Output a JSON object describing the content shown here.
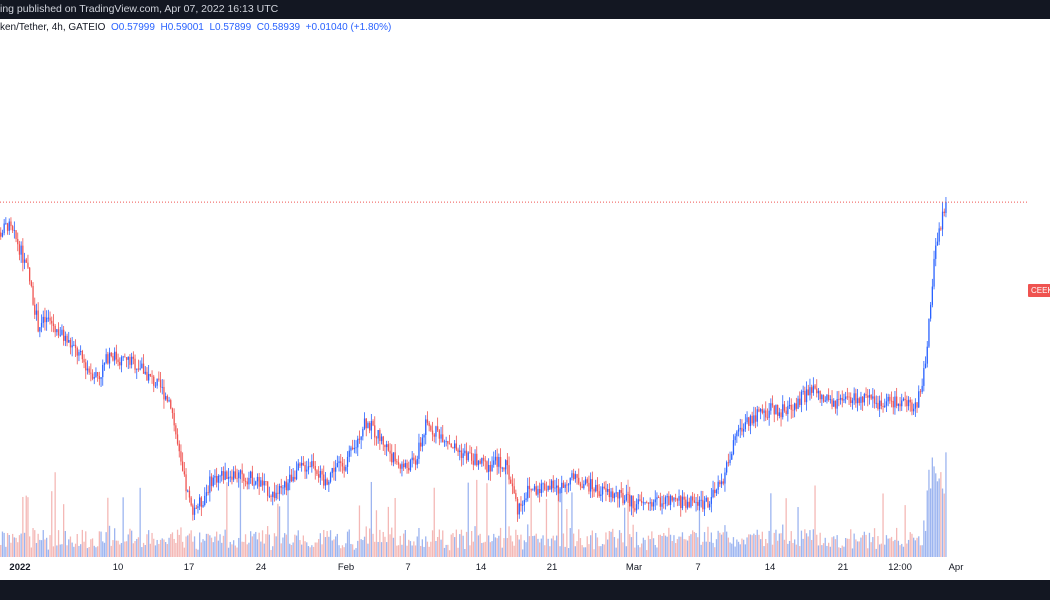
{
  "header": {
    "publish_text": "ing published on TradingView.com, Apr 07, 2022 16:13 UTC"
  },
  "legend": {
    "symbol": "ken/Tether, 4h, GATEIO",
    "open_label": "O",
    "open": "0.57999",
    "high_label": "H",
    "high": "0.59001",
    "low_label": "L",
    "low": "0.57899",
    "close_label": "C",
    "close": "0.58939",
    "change": "+0.01040 (+1.80%)"
  },
  "price_label": "CEEK",
  "colors": {
    "up": "#2962ff",
    "down": "#ef5350",
    "volume_up": "#9db5f0",
    "volume_down": "#f4b8b6",
    "bar_bg": "#131722"
  },
  "chart_data": {
    "type": "candlestick",
    "interval": "4h",
    "x_tick_labels": [
      "2022",
      "10",
      "17",
      "24",
      "Feb",
      "7",
      "14",
      "21",
      "Mar",
      "7",
      "14",
      "21",
      "12:00",
      "Apr"
    ],
    "last_price": 0.58939,
    "anchors": [
      {
        "t": "Jan 03",
        "price": 0.55
      },
      {
        "t": "Jan 04",
        "price": 0.56
      },
      {
        "t": "Jan 05",
        "price": 0.57
      },
      {
        "t": "Jan 06",
        "price": 0.555
      },
      {
        "t": "Jan 07",
        "price": 0.53
      },
      {
        "t": "Jan 08",
        "price": 0.485
      },
      {
        "t": "Jan 09",
        "price": 0.49
      },
      {
        "t": "Jan 10",
        "price": 0.48
      },
      {
        "t": "Jan 11",
        "price": 0.47
      },
      {
        "t": "Jan 12",
        "price": 0.46
      },
      {
        "t": "Jan 13",
        "price": 0.447
      },
      {
        "t": "Jan 14",
        "price": 0.442
      },
      {
        "t": "Jan 15",
        "price": 0.462
      },
      {
        "t": "Jan 16",
        "price": 0.456
      },
      {
        "t": "Jan 17",
        "price": 0.455
      },
      {
        "t": "Jan 18",
        "price": 0.45
      },
      {
        "t": "Jan 19",
        "price": 0.44
      },
      {
        "t": "Jan 20",
        "price": 0.432
      },
      {
        "t": "Jan 21",
        "price": 0.42
      },
      {
        "t": "Jan 22",
        "price": 0.365
      },
      {
        "t": "Jan 23",
        "price": 0.33
      },
      {
        "t": "Jan 24",
        "price": 0.335
      },
      {
        "t": "Jan 25",
        "price": 0.355
      },
      {
        "t": "Jan 26",
        "price": 0.358
      },
      {
        "t": "Jan 27",
        "price": 0.36
      },
      {
        "t": "Jan 28",
        "price": 0.357
      },
      {
        "t": "Jan 29",
        "price": 0.356
      },
      {
        "t": "Jan 30",
        "price": 0.35
      },
      {
        "t": "Jan 31",
        "price": 0.342
      },
      {
        "t": "Feb 01",
        "price": 0.345
      },
      {
        "t": "Feb 02",
        "price": 0.36
      },
      {
        "t": "Feb 03",
        "price": 0.365
      },
      {
        "t": "Feb 04",
        "price": 0.37
      },
      {
        "t": "Feb 05",
        "price": 0.35
      },
      {
        "t": "Feb 06",
        "price": 0.365
      },
      {
        "t": "Feb 07",
        "price": 0.368
      },
      {
        "t": "Feb 08",
        "price": 0.38
      },
      {
        "t": "Feb 09",
        "price": 0.405
      },
      {
        "t": "Feb 10",
        "price": 0.395
      },
      {
        "t": "Feb 11",
        "price": 0.385
      },
      {
        "t": "Feb 12",
        "price": 0.37
      },
      {
        "t": "Feb 13",
        "price": 0.365
      },
      {
        "t": "Feb 14",
        "price": 0.37
      },
      {
        "t": "Feb 15",
        "price": 0.4
      },
      {
        "t": "Feb 16",
        "price": 0.396
      },
      {
        "t": "Feb 17",
        "price": 0.39
      },
      {
        "t": "Feb 18",
        "price": 0.38
      },
      {
        "t": "Feb 19",
        "price": 0.375
      },
      {
        "t": "Feb 20",
        "price": 0.37
      },
      {
        "t": "Feb 21",
        "price": 0.366
      },
      {
        "t": "Feb 22",
        "price": 0.37
      },
      {
        "t": "Feb 23",
        "price": 0.365
      },
      {
        "t": "Feb 24",
        "price": 0.33
      },
      {
        "t": "Feb 25",
        "price": 0.345
      },
      {
        "t": "Feb 26",
        "price": 0.348
      },
      {
        "t": "Feb 27",
        "price": 0.35
      },
      {
        "t": "Feb 28",
        "price": 0.345
      },
      {
        "t": "Mar 01",
        "price": 0.355
      },
      {
        "t": "Mar 02",
        "price": 0.354
      },
      {
        "t": "Mar 03",
        "price": 0.35
      },
      {
        "t": "Mar 04",
        "price": 0.345
      },
      {
        "t": "Mar 05",
        "price": 0.343
      },
      {
        "t": "Mar 06",
        "price": 0.34
      },
      {
        "t": "Mar 07",
        "price": 0.336
      },
      {
        "t": "Mar 08",
        "price": 0.333
      },
      {
        "t": "Mar 09",
        "price": 0.335
      },
      {
        "t": "Mar 10",
        "price": 0.337
      },
      {
        "t": "Mar 11",
        "price": 0.335
      },
      {
        "t": "Mar 12",
        "price": 0.336
      },
      {
        "t": "Mar 13",
        "price": 0.336
      },
      {
        "t": "Mar 14",
        "price": 0.335
      },
      {
        "t": "Mar 15",
        "price": 0.338
      },
      {
        "t": "Mar 16",
        "price": 0.352
      },
      {
        "t": "Mar 17",
        "price": 0.38
      },
      {
        "t": "Mar 18",
        "price": 0.4
      },
      {
        "t": "Mar 19",
        "price": 0.408
      },
      {
        "t": "Mar 20",
        "price": 0.41
      },
      {
        "t": "Mar 21",
        "price": 0.414
      },
      {
        "t": "Mar 22",
        "price": 0.413
      },
      {
        "t": "Mar 23",
        "price": 0.417
      },
      {
        "t": "Mar 24",
        "price": 0.425
      },
      {
        "t": "Mar 25",
        "price": 0.43
      },
      {
        "t": "Mar 26",
        "price": 0.422
      },
      {
        "t": "Mar 27",
        "price": 0.418
      },
      {
        "t": "Mar 28",
        "price": 0.42
      },
      {
        "t": "Mar 29",
        "price": 0.423
      },
      {
        "t": "Mar 30",
        "price": 0.422
      },
      {
        "t": "Mar 31",
        "price": 0.419
      },
      {
        "t": "Apr 01",
        "price": 0.422
      },
      {
        "t": "Apr 02",
        "price": 0.42
      },
      {
        "t": "Apr 03",
        "price": 0.418
      },
      {
        "t": "Apr 04",
        "price": 0.415
      },
      {
        "t": "Apr 05",
        "price": 0.45
      },
      {
        "t": "Apr 06",
        "price": 0.555
      },
      {
        "t": "Apr 07",
        "price": 0.589
      }
    ]
  }
}
